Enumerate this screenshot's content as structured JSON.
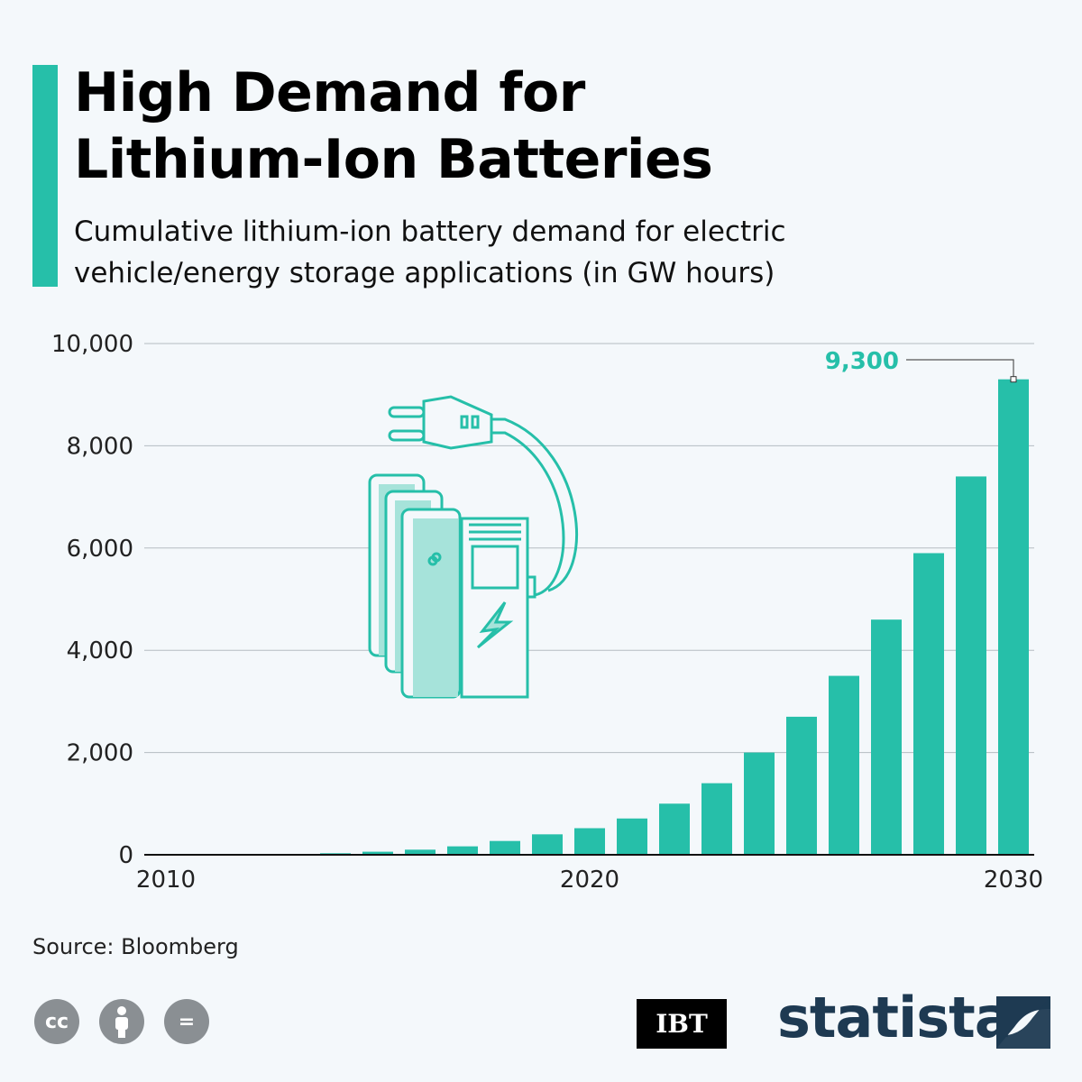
{
  "header": {
    "title_line1": "High Demand for",
    "title_line2": "Lithium-Ion Batteries",
    "subtitle_line1": "Cumulative lithium-ion battery demand for electric",
    "subtitle_line2": "vehicle/energy storage applications (in GW hours)"
  },
  "chart_data": {
    "type": "bar",
    "title": "High Demand for Lithium-Ion Batteries",
    "subtitle": "Cumulative lithium-ion battery demand for electric vehicle/energy storage applications (in GW hours)",
    "categories": [
      2010,
      2011,
      2012,
      2013,
      2014,
      2015,
      2016,
      2017,
      2018,
      2019,
      2020,
      2021,
      2022,
      2023,
      2024,
      2025,
      2026,
      2027,
      2028,
      2029,
      2030
    ],
    "values": [
      0,
      0,
      0,
      0,
      30,
      60,
      100,
      165,
      270,
      400,
      520,
      710,
      1000,
      1400,
      2000,
      2700,
      3500,
      4600,
      5900,
      7400,
      9300
    ],
    "ylim": [
      0,
      10000
    ],
    "yticks": [
      "0",
      "2,000",
      "4,000",
      "6,000",
      "8,000",
      "10,000"
    ],
    "xticks": [
      "2010",
      "2020",
      "2030"
    ],
    "annotation": "9,300",
    "grid": true,
    "bar_color": "#26bfa9"
  },
  "footer": {
    "source": "Source: Bloomberg",
    "license_icons": [
      "cc-icon",
      "attribution-icon",
      "no-derivatives-icon"
    ],
    "cc_label": "cc",
    "nd_label": "=",
    "ibt_logo": "IBT",
    "statista_logo": "statista"
  }
}
